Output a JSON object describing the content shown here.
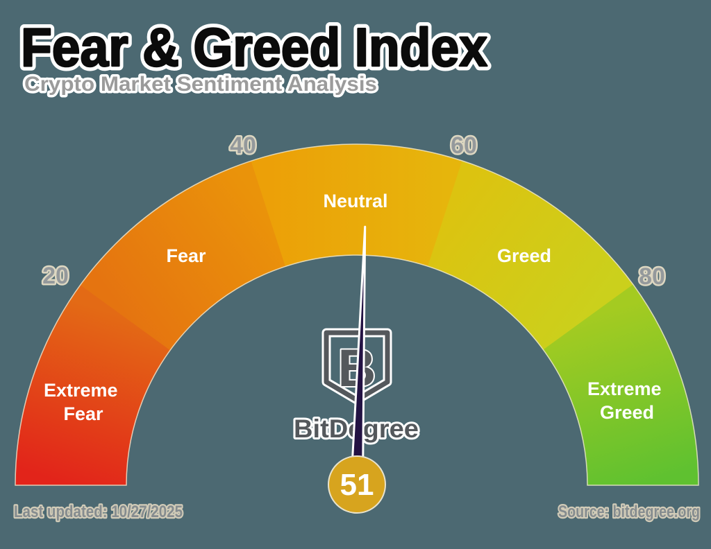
{
  "title": "Fear & Greed Index",
  "subtitle": "Crypto Market Sentiment Analysis",
  "gauge": {
    "value": "51",
    "ticks": [
      "20",
      "40",
      "60",
      "80"
    ],
    "segments": [
      {
        "label": "Extreme Fear",
        "label_lines": [
          "Extreme",
          "Fear"
        ],
        "range": [
          0,
          20
        ],
        "colors": [
          "#e2241a",
          "#e36a15"
        ]
      },
      {
        "label": "Fear",
        "range": [
          20,
          40
        ],
        "colors": [
          "#e57410",
          "#ea930a"
        ]
      },
      {
        "label": "Neutral",
        "range": [
          40,
          60
        ],
        "colors": [
          "#eca008",
          "#e6b50c"
        ]
      },
      {
        "label": "Greed",
        "range": [
          60,
          80
        ],
        "colors": [
          "#dcc310",
          "#cbd01c"
        ]
      },
      {
        "label": "Extreme Greed",
        "label_lines": [
          "Extreme",
          "Greed"
        ],
        "range": [
          80,
          100
        ],
        "colors": [
          "#a4cb21",
          "#5fc130"
        ]
      }
    ],
    "needle_color": "#231243",
    "badge_color": "#d7a41e"
  },
  "logo": {
    "wordmark": "BitDegree",
    "monogram": "B"
  },
  "footer": {
    "last_updated": "Last updated: 10/27/2025",
    "source": "Source: bitdegree.org"
  },
  "colors": {
    "background": "#4c6972",
    "title_text": "#0b0b0b",
    "subtitle_text": "#9b9b9b",
    "tick_text": "#94999c",
    "segment_label_text": "#ffffff",
    "footer_text": "#858c8f",
    "outline_cream": "#e9e3cd",
    "logo_gray": "#54585c"
  },
  "chart_data": {
    "type": "gauge",
    "title": "Fear & Greed Index",
    "subtitle": "Crypto Market Sentiment Analysis",
    "value": 51,
    "range": [
      0,
      100
    ],
    "ticks": [
      20,
      40,
      60,
      80
    ],
    "segments": [
      {
        "label": "Extreme Fear",
        "from": 0,
        "to": 20,
        "colors": [
          "#e2241a",
          "#e36a15"
        ]
      },
      {
        "label": "Fear",
        "from": 20,
        "to": 40,
        "colors": [
          "#e57410",
          "#ea930a"
        ]
      },
      {
        "label": "Neutral",
        "from": 40,
        "to": 60,
        "colors": [
          "#eca008",
          "#e6b50c"
        ]
      },
      {
        "label": "Greed",
        "from": 60,
        "to": 80,
        "colors": [
          "#dcc310",
          "#cbd01c"
        ]
      },
      {
        "label": "Extreme Greed",
        "from": 80,
        "to": 100,
        "colors": [
          "#a4cb21",
          "#5fc130"
        ]
      }
    ],
    "needle_value": 51,
    "annotations": [
      "Last updated: 10/27/2025",
      "Source: bitdegree.org"
    ],
    "source": "bitdegree.org"
  }
}
